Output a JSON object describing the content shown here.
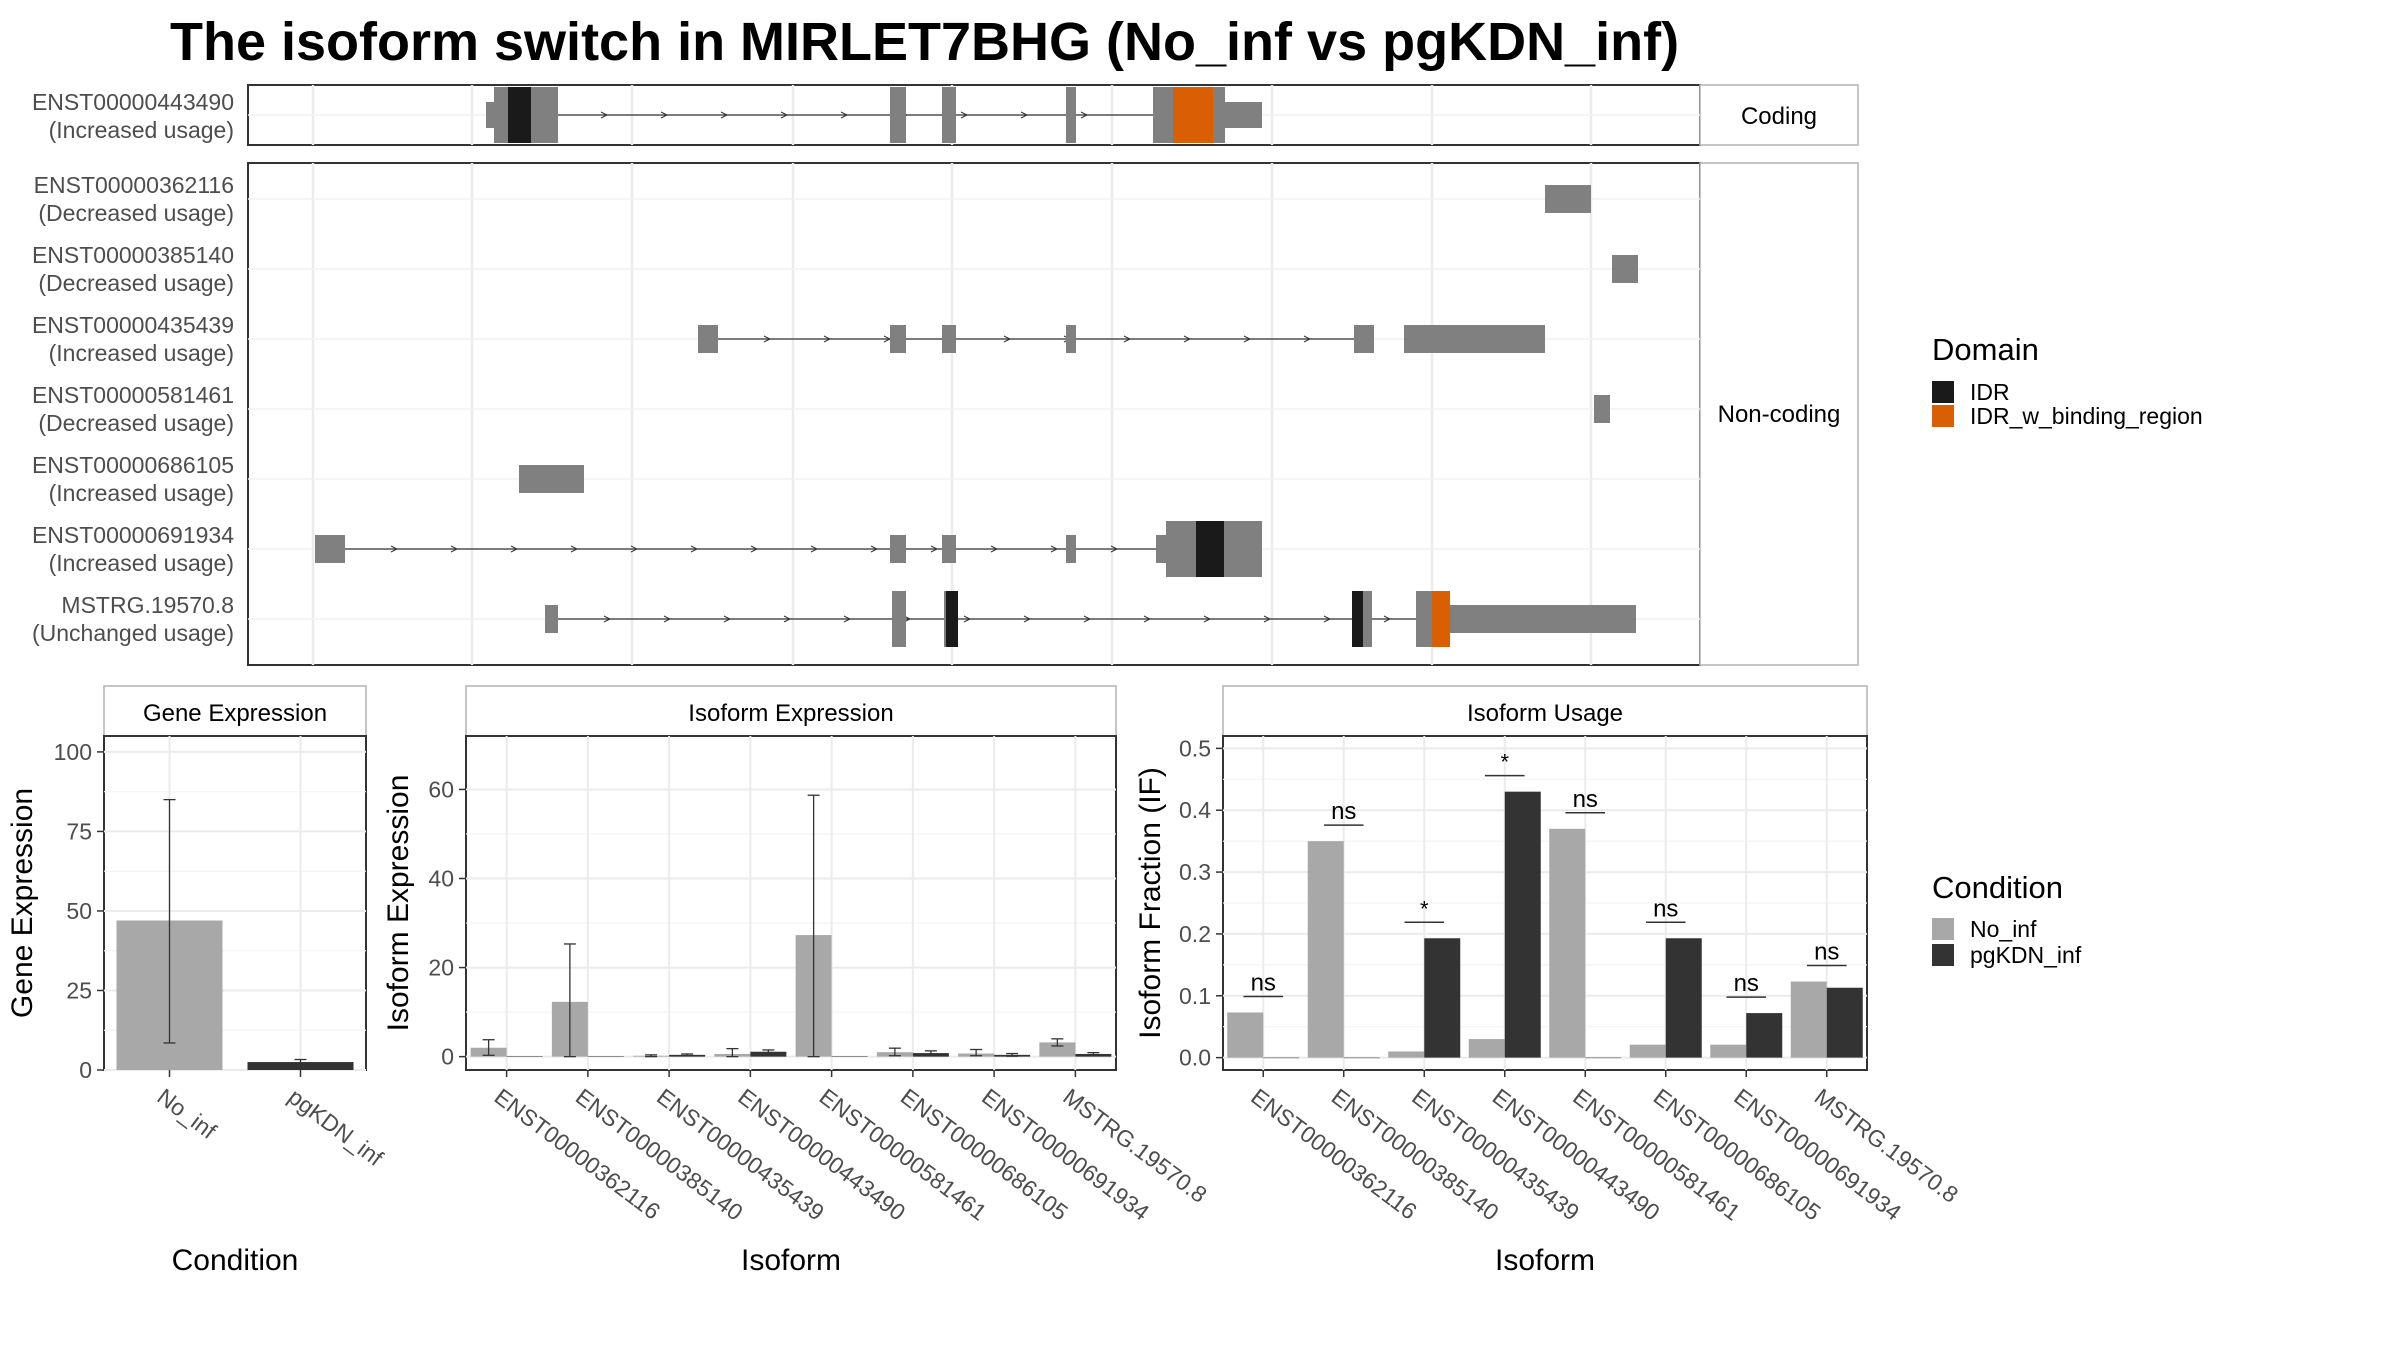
{
  "title": "The isoform switch in MIRLET7BHG (No_inf vs pgKDN_inf)",
  "colors": {
    "exon": "#808080",
    "idr": "#1a1a1a",
    "idr_binding": "#d95f02",
    "no_inf": "#a8a8a8",
    "pgkdn_inf": "#333333",
    "panel_border": "#333333",
    "strip_fill": "#ffffff",
    "grid": "#ebebeb"
  },
  "structure": {
    "coding_label": "Coding",
    "noncoding_label": "Non-coding",
    "coding": [
      {
        "id": "ENST00000443490",
        "status": "(Increased usage)"
      }
    ],
    "noncoding": [
      {
        "id": "ENST00000362116",
        "status": "(Decreased usage)"
      },
      {
        "id": "ENST00000385140",
        "status": "(Decreased usage)"
      },
      {
        "id": "ENST00000435439",
        "status": "(Increased usage)"
      },
      {
        "id": "ENST00000581461",
        "status": "(Decreased usage)"
      },
      {
        "id": "ENST00000686105",
        "status": "(Increased usage)"
      },
      {
        "id": "ENST00000691934",
        "status": "(Increased usage)"
      },
      {
        "id": "MSTRG.19570.8",
        "status": "(Unchanged usage)"
      }
    ]
  },
  "domain_legend": {
    "title": "Domain",
    "items": [
      {
        "label": "IDR",
        "color": "#1a1a1a"
      },
      {
        "label": "IDR_w_binding_region",
        "color": "#d95f02"
      }
    ]
  },
  "condition_legend": {
    "title": "Condition",
    "items": [
      {
        "label": "No_inf",
        "color": "#a8a8a8"
      },
      {
        "label": "pgKDN_inf",
        "color": "#333333"
      }
    ]
  },
  "chart_data": [
    {
      "type": "bar",
      "strip": "Gene Expression",
      "xlabel": "Condition",
      "ylabel": "Gene Expression",
      "ylim": [
        0,
        105
      ],
      "yticks": [
        0,
        25,
        50,
        75,
        100
      ],
      "categories": [
        "No_inf",
        "pgKDN_inf"
      ],
      "values": [
        47,
        2.5
      ],
      "errors": [
        [
          8.5,
          85
        ],
        [
          1.8,
          3.3
        ]
      ]
    },
    {
      "type": "bar",
      "strip": "Isoform Expression",
      "xlabel": "Isoform",
      "ylabel": "Isoform Expression",
      "ylim": [
        -3,
        72
      ],
      "yticks": [
        0,
        20,
        40,
        60
      ],
      "categories": [
        "ENST00000362116",
        "ENST00000385140",
        "ENST00000435439",
        "ENST00000443490",
        "ENST00000581461",
        "ENST00000686105",
        "ENST00000691934",
        "MSTRG.19570.8"
      ],
      "series": [
        {
          "name": "No_inf",
          "values": [
            2.0,
            12.3,
            0.2,
            0.6,
            27.3,
            1.0,
            0.7,
            3.2
          ],
          "errors": [
            [
              0.3,
              3.8
            ],
            [
              0,
              25.3
            ],
            [
              0,
              0.4
            ],
            [
              0,
              1.8
            ],
            [
              0,
              58.7
            ],
            [
              0.2,
              1.9
            ],
            [
              0.2,
              1.6
            ],
            [
              2.4,
              4.0
            ]
          ]
        },
        {
          "name": "pgKDN_inf",
          "values": [
            0.05,
            0.05,
            0.4,
            1.1,
            0.05,
            0.8,
            0.4,
            0.6
          ],
          "errors": [
            null,
            null,
            [
              0.2,
              0.6
            ],
            [
              0.7,
              1.5
            ],
            null,
            [
              0.3,
              1.3
            ],
            [
              0.1,
              0.7
            ],
            [
              0.3,
              0.9
            ]
          ]
        }
      ]
    },
    {
      "type": "bar",
      "strip": "Isoform Usage",
      "xlabel": "Isoform",
      "ylabel": "Isoform Fraction (IF)",
      "ylim": [
        -0.02,
        0.52
      ],
      "yticks": [
        0.0,
        0.1,
        0.2,
        0.3,
        0.4,
        0.5
      ],
      "categories": [
        "ENST00000362116",
        "ENST00000385140",
        "ENST00000435439",
        "ENST00000443490",
        "ENST00000581461",
        "ENST00000686105",
        "ENST00000691934",
        "MSTRG.19570.8"
      ],
      "series": [
        {
          "name": "No_inf",
          "values": [
            0.073,
            0.35,
            0.01,
            0.03,
            0.37,
            0.021,
            0.021,
            0.123
          ]
        },
        {
          "name": "pgKDN_inf",
          "values": [
            0.0,
            0.0,
            0.193,
            0.43,
            0.0,
            0.193,
            0.072,
            0.113
          ]
        }
      ],
      "significance": [
        "ns",
        "ns",
        "*",
        "*",
        "ns",
        "ns",
        "ns",
        "ns"
      ]
    }
  ]
}
